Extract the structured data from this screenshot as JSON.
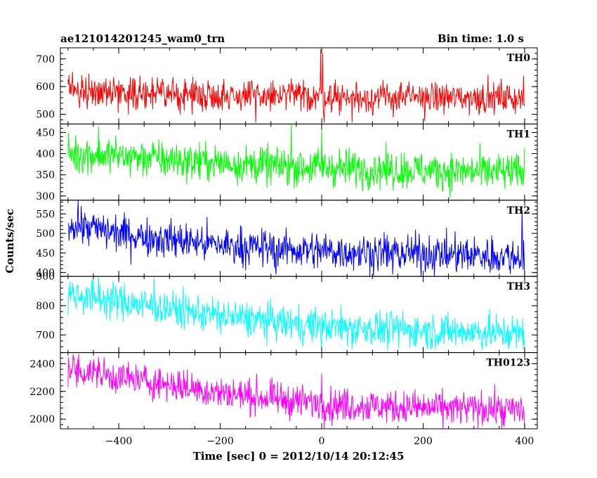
{
  "chart_data": {
    "type": "line",
    "title_left": "ae121014201245_wam0_trn",
    "title_right": "Bin time: 1.0 s",
    "xlabel": "Time [sec] 0 = 2012/10/14 20:12:45",
    "ylabel": "Counts/sec",
    "xlim": [
      -515,
      425
    ],
    "xticks": [
      -400,
      -200,
      0,
      200,
      400
    ],
    "x_start": -500,
    "x_end": 400,
    "x_step": 1,
    "panels": [
      {
        "name": "TH0",
        "color": "#ff0000",
        "ylim": [
          465,
          740
        ],
        "yticks": [
          500,
          600,
          700
        ],
        "trend": [
          [
            -500,
            590
          ],
          [
            -450,
            585
          ],
          [
            -300,
            572
          ],
          [
            -100,
            565
          ],
          [
            0,
            565
          ],
          [
            100,
            560
          ],
          [
            400,
            560
          ]
        ],
        "noise": 28,
        "features": [
          [
            -60,
            630
          ],
          [
            -2,
            735
          ],
          [
            2,
            720
          ],
          [
            5,
            470
          ],
          [
            60,
            470
          ],
          [
            -130,
            470
          ]
        ]
      },
      {
        "name": "TH1",
        "color": "#00ff00",
        "ylim": [
          290,
          470
        ],
        "yticks": [
          300,
          350,
          400,
          450
        ],
        "trend": [
          [
            -500,
            400
          ],
          [
            -400,
            395
          ],
          [
            -300,
            385
          ],
          [
            -200,
            378
          ],
          [
            -100,
            372
          ],
          [
            0,
            368
          ],
          [
            200,
            360
          ],
          [
            400,
            355
          ]
        ],
        "noise": 22,
        "features": [
          [
            -60,
            470
          ],
          [
            0,
            460
          ],
          [
            -440,
            465
          ]
        ]
      },
      {
        "name": "TH2",
        "color": "#0000ff",
        "ylim": [
          390,
          585
        ],
        "yticks": [
          400,
          450,
          500,
          550
        ],
        "trend": [
          [
            -500,
            525
          ],
          [
            -400,
            500
          ],
          [
            -300,
            485
          ],
          [
            -200,
            470
          ],
          [
            -100,
            462
          ],
          [
            0,
            455
          ],
          [
            200,
            448
          ],
          [
            400,
            440
          ]
        ],
        "noise": 24,
        "features": [
          [
            -480,
            585
          ],
          [
            -90,
            395
          ],
          [
            140,
            395
          ],
          [
            395,
            560
          ],
          [
            400,
            395
          ]
        ]
      },
      {
        "name": "TH3",
        "color": "#00ffff",
        "ylim": [
          640,
          900
        ],
        "yticks": [
          700,
          800,
          900
        ],
        "trend": [
          [
            -500,
            840
          ],
          [
            -400,
            815
          ],
          [
            -300,
            790
          ],
          [
            -200,
            765
          ],
          [
            -100,
            745
          ],
          [
            0,
            730
          ],
          [
            200,
            715
          ],
          [
            400,
            705
          ]
        ],
        "noise": 30,
        "features": [
          [
            -440,
            900
          ],
          [
            -330,
            895
          ],
          [
            0,
            650
          ],
          [
            60,
            650
          ],
          [
            130,
            645
          ]
        ]
      },
      {
        "name": "TH0123",
        "color": "#ff00ff",
        "ylim": [
          1930,
          2480
        ],
        "yticks": [
          2000,
          2200,
          2400
        ],
        "trend": [
          [
            -500,
            2360
          ],
          [
            -400,
            2300
          ],
          [
            -300,
            2250
          ],
          [
            -200,
            2190
          ],
          [
            -100,
            2150
          ],
          [
            0,
            2110
          ],
          [
            200,
            2080
          ],
          [
            400,
            2070
          ]
        ],
        "noise": 60,
        "features": [
          [
            -490,
            2470
          ],
          [
            -440,
            2450
          ],
          [
            0,
            2330
          ],
          [
            20,
            1950
          ],
          [
            360,
            1945
          ],
          [
            400,
            1950
          ]
        ]
      }
    ]
  }
}
